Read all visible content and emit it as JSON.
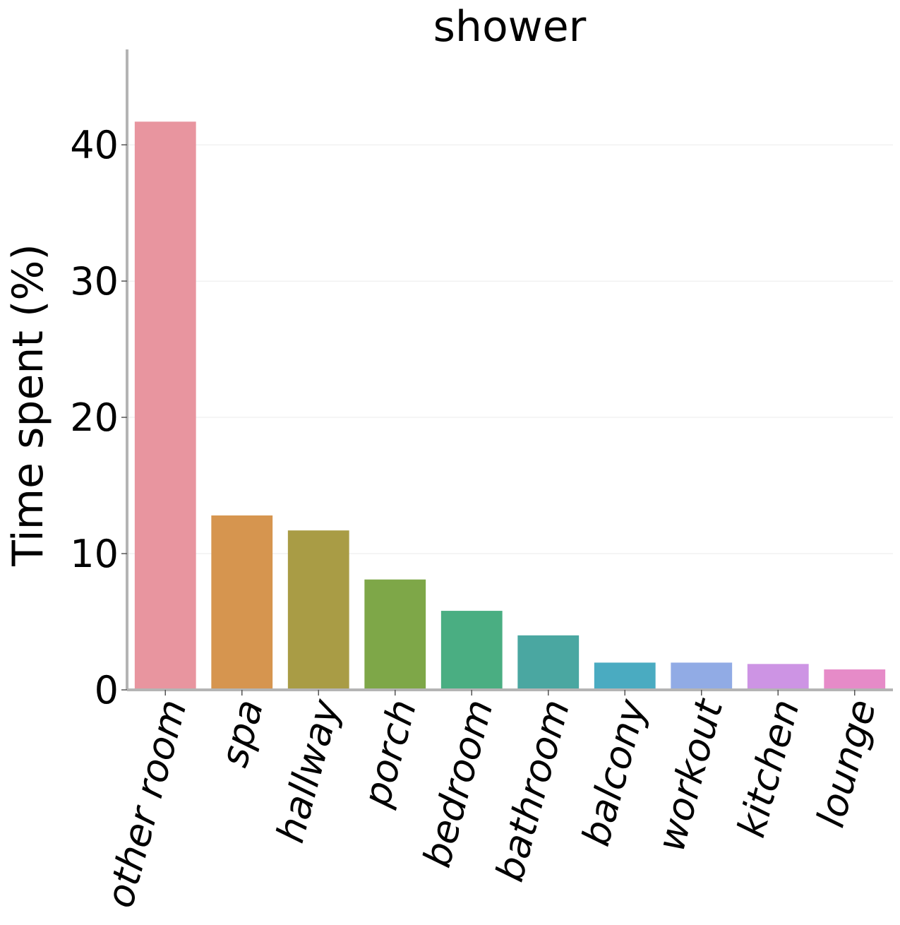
{
  "chart_data": {
    "type": "bar",
    "title": "shower",
    "xlabel": "",
    "ylabel": "Time spent (%)",
    "ylim": [
      0,
      47
    ],
    "yticks": [
      0,
      10,
      20,
      30,
      40
    ],
    "grid": "horizontal",
    "categories": [
      "other room",
      "spa",
      "hallway",
      "porch",
      "bedroom",
      "bathroom",
      "balcony",
      "workout",
      "kitchen",
      "lounge"
    ],
    "values": [
      41.7,
      12.8,
      11.7,
      8.1,
      5.8,
      4.0,
      2.0,
      2.0,
      1.9,
      1.5
    ],
    "colors": [
      "#e8959f",
      "#d6954f",
      "#a99c45",
      "#7ea748",
      "#4aae82",
      "#4aa7a1",
      "#4aabc1",
      "#91abe5",
      "#cd94e4",
      "#e68bc8"
    ]
  }
}
